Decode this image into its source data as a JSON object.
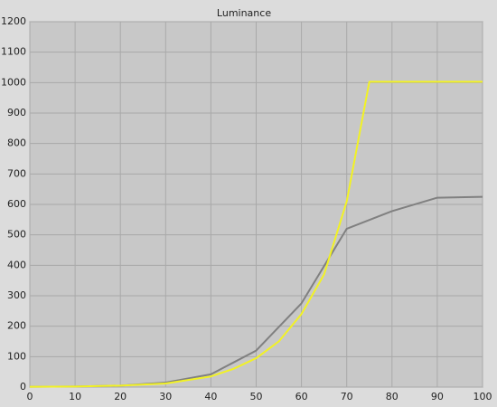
{
  "chart_data": {
    "type": "line",
    "title": "Luminance",
    "series": [
      {
        "color": "#808080",
        "x": [
          0,
          10,
          20,
          30,
          40,
          50,
          60,
          70,
          80,
          90,
          100
        ],
        "values": [
          1,
          2,
          5,
          15,
          42,
          120,
          275,
          520,
          578,
          622,
          625
        ]
      },
      {
        "color": "#f2f224",
        "x": [
          0,
          10,
          20,
          30,
          40,
          45,
          50,
          55,
          60,
          65,
          70,
          75,
          80,
          90,
          100
        ],
        "values": [
          1,
          2,
          5,
          12,
          35,
          60,
          95,
          150,
          240,
          370,
          610,
          1003,
          1003,
          1003,
          1003
        ]
      }
    ],
    "xlim": [
      0,
      100
    ],
    "xticks": [
      0,
      10,
      20,
      30,
      40,
      50,
      60,
      70,
      80,
      90,
      100
    ],
    "ylim": [
      0,
      1200
    ],
    "yticks": [
      0,
      100,
      200,
      300,
      400,
      500,
      600,
      700,
      800,
      900,
      1000,
      1100,
      1200
    ],
    "grid": true
  }
}
